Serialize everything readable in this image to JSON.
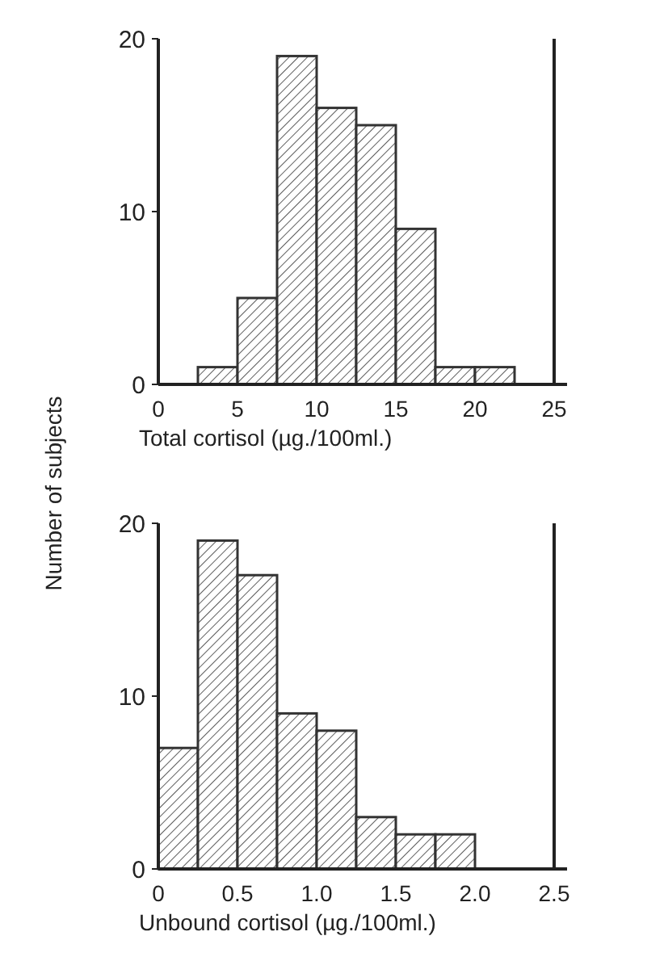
{
  "chart_data": [
    {
      "type": "histogram",
      "bins": [
        2.5,
        5,
        7.5,
        10,
        12.5,
        15,
        17.5,
        20,
        22.5
      ],
      "values": [
        1,
        5,
        19,
        16,
        15,
        9,
        1,
        1
      ],
      "color": "#333333",
      "xlim": [
        0,
        25
      ],
      "xticks": [
        0,
        5,
        10,
        15,
        20,
        25
      ],
      "ylim": [
        0,
        20
      ],
      "yticks": [
        0,
        10,
        20
      ],
      "xlabel": "Total cortisol (µg./100ml.)",
      "ylabel": "Number of subjects"
    },
    {
      "type": "histogram",
      "bins": [
        0,
        0.25,
        0.5,
        0.75,
        1,
        1.25,
        1.5,
        1.75,
        2
      ],
      "values": [
        7,
        19,
        17,
        9,
        8,
        3,
        2,
        2
      ],
      "color": "#333333",
      "xlim": [
        0,
        2.5
      ],
      "xticks": [
        0,
        {
          "value": 0.5,
          "label": "0.5"
        },
        {
          "value": 1,
          "label": "1.0"
        },
        {
          "value": 1.5,
          "label": "1.5"
        },
        {
          "value": 2,
          "label": "2.0"
        },
        {
          "value": 2.5,
          "label": "2.5"
        }
      ],
      "ylim": [
        0,
        20
      ],
      "yticks": [
        0,
        10,
        20
      ],
      "xlabel": "Unbound cortisol (µg./100ml.)"
    }
  ]
}
